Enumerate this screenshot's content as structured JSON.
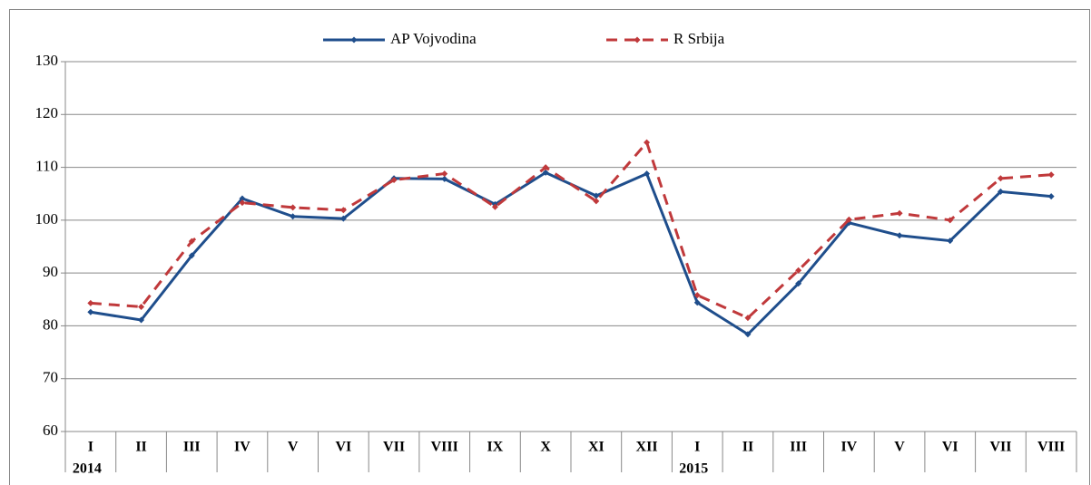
{
  "chart_data": {
    "type": "line",
    "categories": [
      "I",
      "II",
      "III",
      "IV",
      "V",
      "VI",
      "VII",
      "VIII",
      "IX",
      "X",
      "XI",
      "XII",
      "I",
      "II",
      "III",
      "IV",
      "V",
      "VI",
      "VII",
      "VIII"
    ],
    "year_labels": [
      "2014",
      null,
      null,
      null,
      null,
      null,
      null,
      null,
      null,
      null,
      null,
      null,
      "2015",
      null,
      null,
      null,
      null,
      null,
      null,
      null
    ],
    "series": [
      {
        "name": "AP Vojvodina",
        "color": "#1f4e8c",
        "dashed": false,
        "values": [
          82.6,
          81.1,
          93.3,
          104.1,
          100.7,
          100.3,
          107.9,
          107.8,
          103.0,
          109.0,
          104.6,
          108.8,
          84.4,
          78.4,
          88.0,
          99.5,
          97.1,
          96.1,
          105.4,
          104.5
        ]
      },
      {
        "name": "R Srbija",
        "color": "#c0393b",
        "dashed": true,
        "values": [
          84.3,
          83.6,
          96.0,
          103.3,
          102.4,
          101.9,
          107.6,
          108.8,
          102.5,
          110.0,
          103.6,
          114.7,
          85.8,
          81.5,
          90.5,
          100.1,
          101.3,
          100.0,
          107.9,
          108.6
        ]
      }
    ],
    "ylim": [
      60,
      130
    ],
    "yticks": [
      60,
      70,
      80,
      90,
      100,
      110,
      120,
      130
    ],
    "grid": true,
    "legend": "top"
  }
}
